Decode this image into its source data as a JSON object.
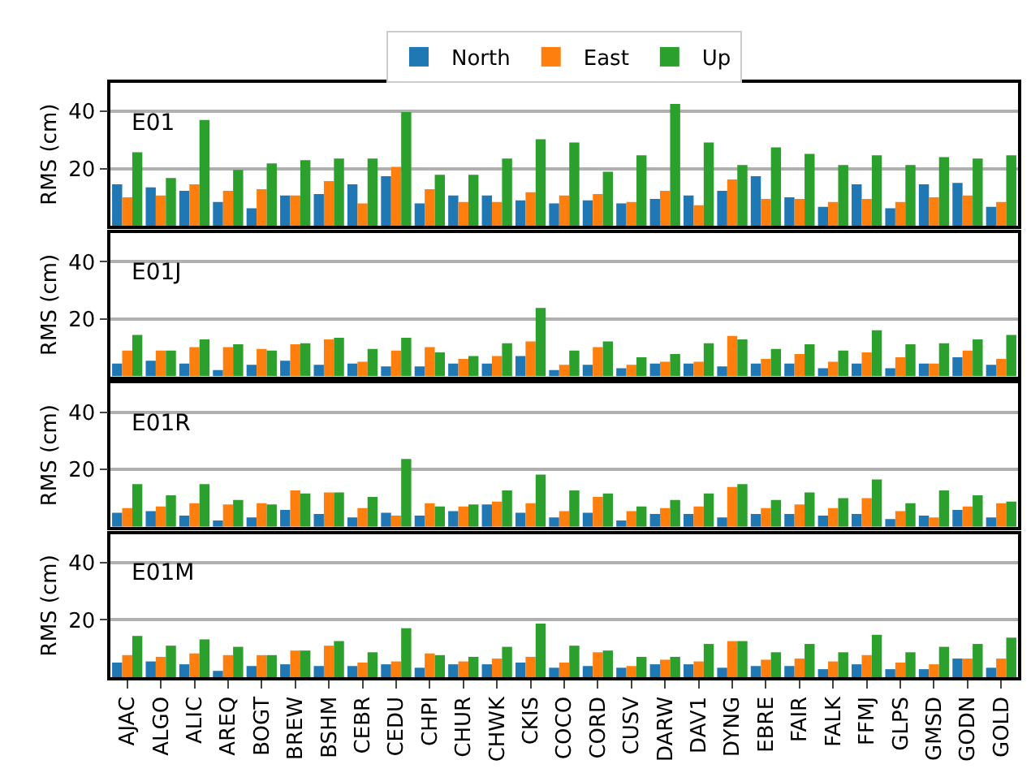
{
  "chart_data": [
    {
      "type": "bar",
      "title": "E01",
      "ylabel": "RMS (cm)",
      "categories": [
        "AJAC",
        "ALGO",
        "ALIC",
        "AREQ",
        "BOGT",
        "BREW",
        "BSHM",
        "CEBR",
        "CEDU",
        "CHPI",
        "CHUR",
        "CHWK",
        "CKIS",
        "COCO",
        "CORD",
        "CUSV",
        "DARW",
        "DAV1",
        "DYNG",
        "EBRE",
        "FAIR",
        "FALK",
        "FFMJ",
        "GLPS",
        "GMSD",
        "GODN",
        "GOLD"
      ],
      "ylim": [
        0,
        50
      ],
      "yticks": [
        20,
        40
      ],
      "grid": "y",
      "legend": "top",
      "tick_labels": "y",
      "series": [
        {
          "name": "North",
          "color": "#1f77b4",
          "values": [
            14.6,
            13.5,
            12.3,
            8.4,
            6.2,
            10.7,
            11.2,
            14.6,
            17.4,
            7.9,
            10.7,
            10.7,
            9,
            7.9,
            9,
            7.9,
            9.5,
            10.7,
            12.3,
            17.4,
            10,
            6.7,
            14.6,
            6.2,
            14.6,
            15.1,
            6.7
          ]
        },
        {
          "name": "East",
          "color": "#ff7f0e",
          "values": [
            10,
            10.7,
            14.6,
            12.3,
            12.9,
            10.7,
            15.7,
            7.9,
            20.7,
            12.9,
            8.4,
            8.4,
            11.8,
            10.7,
            11.2,
            8.4,
            12.3,
            7.3,
            16.3,
            9.5,
            9.5,
            8.4,
            9.5,
            8.4,
            10,
            10.7,
            8.4
          ]
        },
        {
          "name": "Up",
          "color": "#2ca02c",
          "values": [
            25.8,
            16.8,
            37,
            19.6,
            21.9,
            23,
            23.6,
            23.6,
            39.8,
            17.9,
            17.9,
            23.6,
            30.3,
            29.2,
            19,
            24.7,
            42.6,
            29.2,
            21.3,
            27.5,
            25.2,
            21.3,
            24.7,
            21.3,
            24.1,
            23.6,
            24.7
          ]
        }
      ]
    },
    {
      "type": "bar",
      "title": "E01J",
      "ylabel": "RMS (cm)",
      "categories": [
        "AJAC",
        "ALGO",
        "ALIC",
        "AREQ",
        "BOGT",
        "BREW",
        "BSHM",
        "CEBR",
        "CEDU",
        "CHPI",
        "CHUR",
        "CHWK",
        "CKIS",
        "COCO",
        "CORD",
        "CUSV",
        "DARW",
        "DAV1",
        "DYNG",
        "EBRE",
        "FAIR",
        "FALK",
        "FFMJ",
        "GLPS",
        "GMSD",
        "GODN",
        "GOLD"
      ],
      "ylim": [
        0,
        50
      ],
      "yticks": [
        20,
        40
      ],
      "grid": "y",
      "tick_labels": "y",
      "series": [
        {
          "name": "North",
          "color": "#1f77b4",
          "values": [
            4.5,
            5.5,
            4.5,
            2.2,
            4.1,
            5.5,
            4.1,
            4.5,
            3.5,
            3.5,
            4.5,
            4.5,
            7.1,
            2.2,
            4.1,
            2.9,
            4.5,
            4.5,
            3.5,
            4.5,
            4.5,
            2.9,
            4.5,
            2.9,
            4.5,
            6.7,
            4.1
          ]
        },
        {
          "name": "East",
          "color": "#ff7f0e",
          "values": [
            9,
            9,
            10.2,
            10.2,
            9.6,
            11.2,
            12.9,
            5.1,
            9,
            10.2,
            6.1,
            7.1,
            12.2,
            4.1,
            10.2,
            4.1,
            5.1,
            5.1,
            14.1,
            6.1,
            7.8,
            5.1,
            8.4,
            6.7,
            4.5,
            9,
            6.1
          ]
        },
        {
          "name": "Up",
          "color": "#2ca02c",
          "values": [
            14.5,
            9,
            12.9,
            11.2,
            9,
            11.6,
            13.5,
            9.6,
            13.5,
            8.4,
            7.1,
            11.6,
            23.9,
            9,
            12.2,
            6.7,
            7.8,
            11.6,
            12.9,
            9.6,
            11.2,
            9,
            16.1,
            11.2,
            11.6,
            12.9,
            14.5
          ]
        }
      ]
    },
    {
      "type": "bar",
      "title": "E01R",
      "ylabel": "RMS (cm)",
      "categories": [
        "AJAC",
        "ALGO",
        "ALIC",
        "AREQ",
        "BOGT",
        "BREW",
        "BSHM",
        "CEBR",
        "CEDU",
        "CHPI",
        "CHUR",
        "CHWK",
        "CKIS",
        "COCO",
        "CORD",
        "CUSV",
        "DARW",
        "DAV1",
        "DYNG",
        "EBRE",
        "FAIR",
        "FALK",
        "FFMJ",
        "GLPS",
        "GMSD",
        "GODN",
        "GOLD"
      ],
      "ylim": [
        0,
        50
      ],
      "yticks": [
        20,
        40
      ],
      "grid": "y",
      "tick_labels": "y",
      "series": [
        {
          "name": "North",
          "color": "#1f77b4",
          "values": [
            4.9,
            5.5,
            3.9,
            2.2,
            3.3,
            5.9,
            4.5,
            3.3,
            4.9,
            3.9,
            5.5,
            7.8,
            4.9,
            3.3,
            4.9,
            2.2,
            4.5,
            4.5,
            3.3,
            4.5,
            4.5,
            3.9,
            4.5,
            2.7,
            3.9,
            5.9,
            3.3
          ]
        },
        {
          "name": "East",
          "color": "#ff7f0e",
          "values": [
            6.5,
            7.1,
            8.2,
            7.8,
            8.2,
            12.7,
            12,
            6.5,
            3.9,
            8.2,
            7.1,
            8.8,
            8.2,
            5.5,
            10.4,
            5.5,
            6.5,
            7.1,
            13.9,
            6.5,
            7.8,
            6.5,
            10,
            5.5,
            3.3,
            7.1,
            8.2
          ]
        },
        {
          "name": "Up",
          "color": "#2ca02c",
          "values": [
            14.9,
            11,
            14.9,
            9.4,
            7.8,
            11.6,
            12,
            10.4,
            23.7,
            7.1,
            7.8,
            12.7,
            18.2,
            12.7,
            11.6,
            7.1,
            9.4,
            11.6,
            14.9,
            9.4,
            12,
            10,
            16.5,
            8.2,
            12.7,
            11,
            8.8
          ]
        }
      ]
    },
    {
      "type": "bar",
      "title": "E01M",
      "ylabel": "RMS (cm)",
      "categories": [
        "AJAC",
        "ALGO",
        "ALIC",
        "AREQ",
        "BOGT",
        "BREW",
        "BSHM",
        "CEBR",
        "CEDU",
        "CHPI",
        "CHUR",
        "CHWK",
        "CKIS",
        "COCO",
        "CORD",
        "CUSV",
        "DARW",
        "DAV1",
        "DYNG",
        "EBRE",
        "FAIR",
        "FALK",
        "FFMJ",
        "GLPS",
        "GMSD",
        "GODN",
        "GOLD"
      ],
      "ylim": [
        0,
        50
      ],
      "yticks": [
        20,
        40
      ],
      "grid": "y",
      "series": [
        {
          "name": "North",
          "color": "#1f77b4",
          "values": [
            5.1,
            5.5,
            4.5,
            2.2,
            3.9,
            4.5,
            3.9,
            3.9,
            4.5,
            3.3,
            4.5,
            4.5,
            5.1,
            3.3,
            3.9,
            3.3,
            4.5,
            4.5,
            3.3,
            3.9,
            3.9,
            2.8,
            4.5,
            2.8,
            2.8,
            6.5,
            3.3
          ]
        },
        {
          "name": "East",
          "color": "#ff7f0e",
          "values": [
            7.7,
            7.1,
            8.3,
            7.7,
            7.7,
            9.3,
            11,
            5.1,
            5.5,
            8.3,
            5.5,
            6.5,
            7.1,
            5.1,
            8.7,
            3.9,
            6.1,
            5.5,
            12.6,
            6.1,
            6.5,
            5.5,
            7.7,
            5.1,
            4.5,
            6.5,
            6.5
          ]
        },
        {
          "name": "Up",
          "color": "#2ca02c",
          "values": [
            14.4,
            11,
            13.2,
            10.6,
            7.7,
            9.3,
            12.6,
            8.7,
            17.1,
            7.7,
            7.1,
            10.6,
            18.7,
            11,
            9.3,
            7.1,
            7.1,
            11.6,
            12.6,
            8.7,
            11.6,
            8.7,
            14.8,
            8.7,
            10.6,
            11.6,
            13.8
          ]
        }
      ]
    }
  ]
}
